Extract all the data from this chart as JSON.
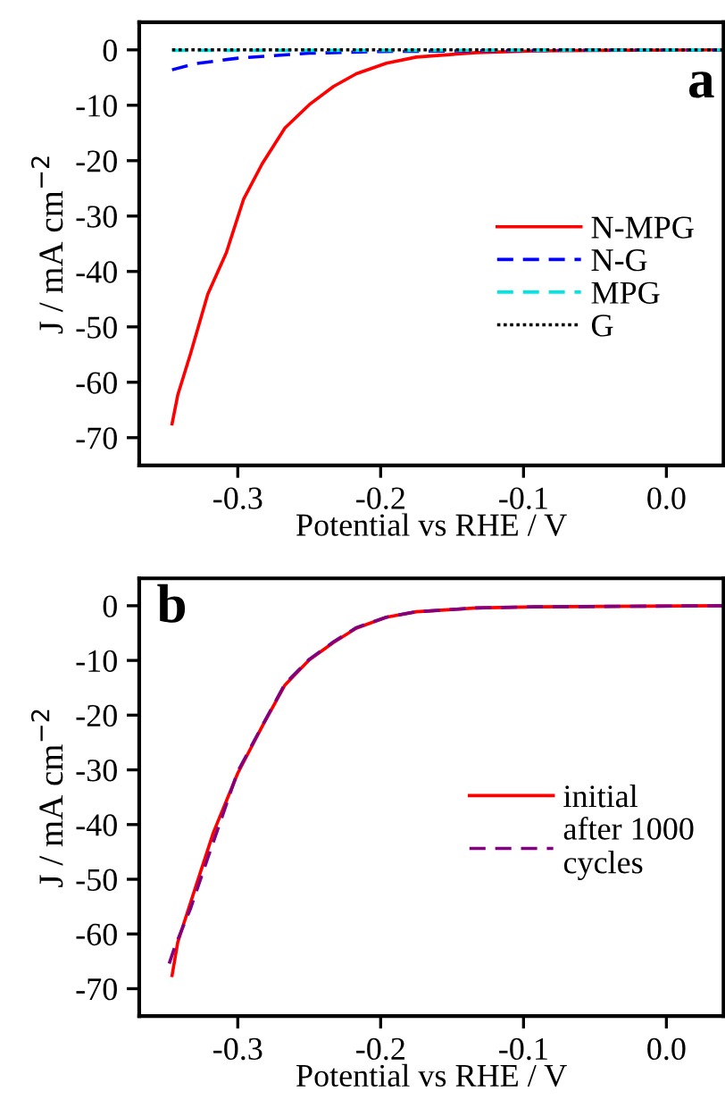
{
  "chart_data": [
    {
      "type": "line",
      "xlabel": "Potential vs RHE / V",
      "ylabel": "J / mA cm$^{−2}$",
      "annotations": [
        "a"
      ],
      "xlim": [
        -0.369,
        0.04
      ],
      "ylim": [
        -75,
        5
      ],
      "xticks": [
        -0.3,
        -0.2,
        -0.1,
        {
          "value": 0,
          "label": "0.0"
        }
      ],
      "yticks": [
        0,
        -10,
        -20,
        -30,
        -40,
        -50,
        -60,
        -70
      ],
      "grid": false,
      "legend": "right",
      "series": [
        {
          "name": "N-MPG",
          "color": "#ff0000",
          "line_style": "solid",
          "x": [
            -0.346,
            -0.342,
            -0.333,
            -0.321,
            -0.308,
            -0.296,
            -0.283,
            -0.267,
            -0.25,
            -0.233,
            -0.217,
            -0.196,
            -0.175,
            -0.133,
            -0.092,
            -0.05,
            0.04
          ],
          "values": [
            -67.5,
            -62.3,
            -54.8,
            -44.1,
            -36.6,
            -27.0,
            -20.6,
            -14.1,
            -9.9,
            -6.6,
            -4.3,
            -2.4,
            -1.3,
            -0.5,
            -0.2,
            -0.1,
            0
          ]
        },
        {
          "name": "N-G",
          "color": "#0000ff",
          "line_style": "dashed",
          "x": [
            -0.346,
            -0.33,
            -0.3,
            -0.25,
            -0.2,
            -0.1,
            0.04
          ],
          "values": [
            -3.6,
            -2.5,
            -1.5,
            -0.6,
            -0.3,
            -0.1,
            0
          ]
        },
        {
          "name": "MPG",
          "color": "#00e5e5",
          "line_style": "dashed",
          "x": [
            -0.346,
            -0.2,
            0.04
          ],
          "values": [
            -0.1,
            -0.1,
            0
          ]
        },
        {
          "name": "G",
          "color": "#000000",
          "line_style": "dotted",
          "x": [
            -0.346,
            -0.2,
            0.04
          ],
          "values": [
            0,
            0,
            0
          ]
        }
      ]
    },
    {
      "type": "line",
      "xlabel": "Potential vs RHE / V",
      "ylabel": "J / mA cm$^{−2}$",
      "annotations": [
        "b"
      ],
      "xlim": [
        -0.369,
        0.04
      ],
      "ylim": [
        -75,
        5
      ],
      "xticks": [
        -0.3,
        -0.2,
        -0.1,
        {
          "value": 0,
          "label": "0.0"
        }
      ],
      "yticks": [
        0,
        -10,
        -20,
        -30,
        -40,
        -50,
        -60,
        -70
      ],
      "grid": false,
      "legend": "right",
      "series": [
        {
          "name": "initial",
          "color": "#ff0000",
          "line_style": "solid",
          "x": [
            -0.346,
            -0.342,
            -0.329,
            -0.317,
            -0.3,
            -0.283,
            -0.267,
            -0.25,
            -0.233,
            -0.217,
            -0.196,
            -0.175,
            -0.133,
            -0.092,
            0.04
          ],
          "values": [
            -67.6,
            -61.5,
            -51.0,
            -41.4,
            -30.6,
            -22.1,
            -14.5,
            -9.9,
            -6.7,
            -4.1,
            -2.1,
            -1.1,
            -0.4,
            -0.2,
            0
          ]
        },
        {
          "name": "after 1000\ncycles",
          "color": "#800080",
          "line_style": "dashed",
          "x": [
            -0.348,
            -0.344,
            -0.333,
            -0.321,
            -0.3,
            -0.283,
            -0.267,
            -0.25,
            -0.233,
            -0.217,
            -0.196,
            -0.175,
            -0.133,
            -0.092,
            0.04
          ],
          "values": [
            -65.4,
            -62.3,
            -55.3,
            -46.1,
            -30.3,
            -22.0,
            -14.3,
            -9.8,
            -6.6,
            -4.0,
            -2.1,
            -1.1,
            -0.4,
            -0.2,
            0
          ]
        }
      ]
    }
  ]
}
